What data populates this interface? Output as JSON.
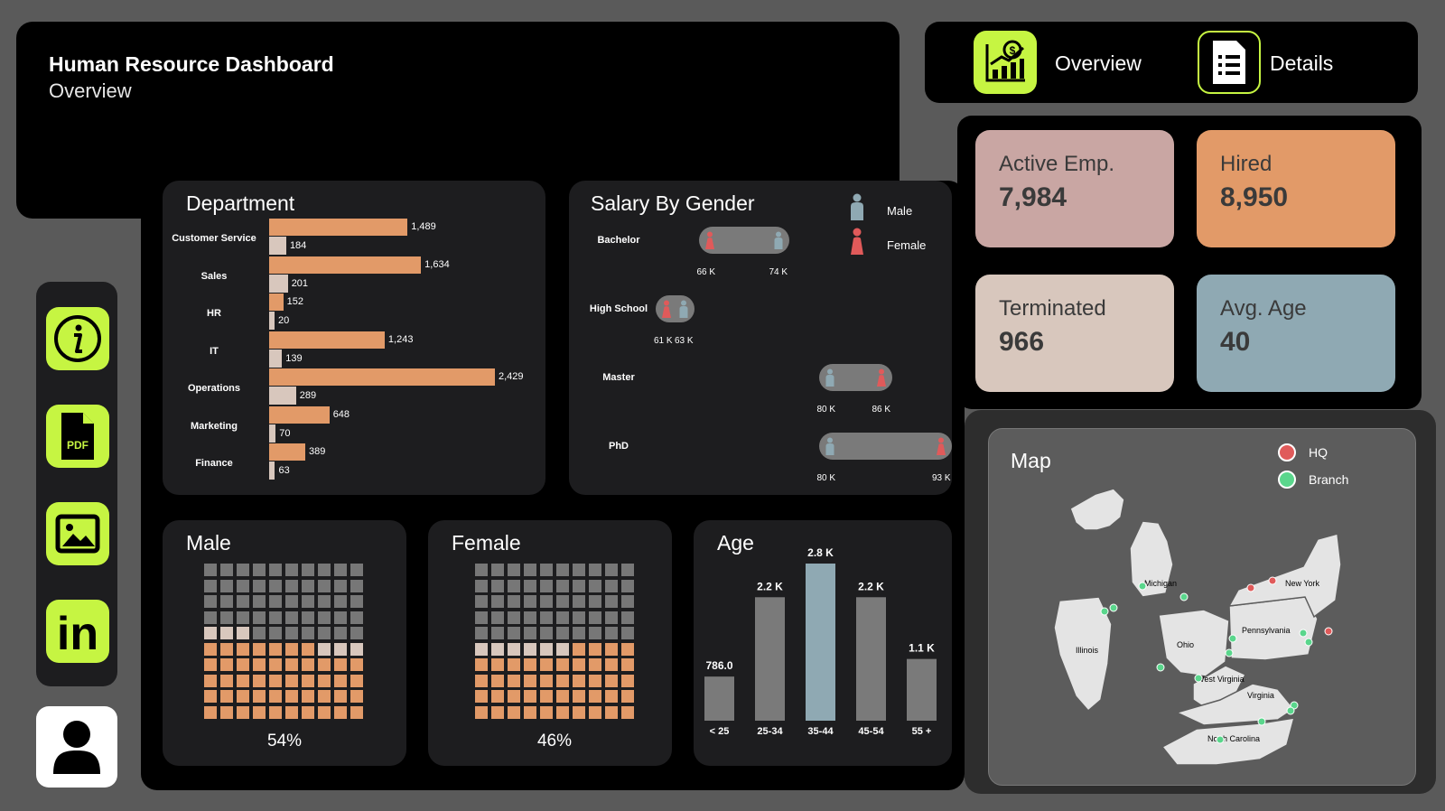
{
  "header": {
    "title": "Human Resource Dashboard",
    "subtitle": "Overview"
  },
  "nav": {
    "overview_label": "Overview",
    "details_label": "Details",
    "overview_icon": "chart-dollar-icon",
    "details_icon": "document-list-icon"
  },
  "sidebar": {
    "items": [
      {
        "icon": "info-icon"
      },
      {
        "icon": "pdf-icon",
        "label": "PDF"
      },
      {
        "icon": "image-icon"
      },
      {
        "icon": "linkedin-icon",
        "label": "in"
      }
    ],
    "user_icon": "user-icon"
  },
  "kpis": {
    "active": {
      "label": "Active Emp.",
      "value": "7,984",
      "color": "#c9a6a3"
    },
    "hired": {
      "label": "Hired",
      "value": "8,950",
      "color": "#e29a68"
    },
    "terminated": {
      "label": "Terminated",
      "value": "966",
      "color": "#d8c7bd"
    },
    "avg_age": {
      "label": "Avg. Age",
      "value": "40",
      "color": "#8fa9b3"
    }
  },
  "department": {
    "title": "Department",
    "rows": [
      {
        "name": "Customer Service",
        "hired": 1489,
        "hired_label": "1,489",
        "terminated": 184,
        "terminated_label": "184"
      },
      {
        "name": "Sales",
        "hired": 1634,
        "hired_label": "1,634",
        "terminated": 201,
        "terminated_label": "201"
      },
      {
        "name": "HR",
        "hired": 152,
        "hired_label": "152",
        "terminated": 20,
        "terminated_label": "20"
      },
      {
        "name": "IT",
        "hired": 1243,
        "hired_label": "1,243",
        "terminated": 139,
        "terminated_label": "139"
      },
      {
        "name": "Operations",
        "hired": 2429,
        "hired_label": "2,429",
        "terminated": 289,
        "terminated_label": "289"
      },
      {
        "name": "Marketing",
        "hired": 648,
        "hired_label": "648",
        "terminated": 70,
        "terminated_label": "70"
      },
      {
        "name": "Finance",
        "hired": 389,
        "hired_label": "389",
        "terminated": 63,
        "terminated_label": "63"
      }
    ],
    "colors": {
      "hired": "#e29a68",
      "terminated": "#d8c7bd"
    }
  },
  "salary": {
    "title": "Salary By Gender",
    "legend": {
      "male": "Male",
      "female": "Female"
    },
    "colors": {
      "male": "#8fa9b3",
      "female": "#e05a5a"
    },
    "rows": [
      {
        "name": "Bachelor",
        "low": 66,
        "high": 74,
        "low_label": "66 K",
        "high_label": "74 K",
        "low_gender": "female"
      },
      {
        "name": "High School",
        "low": 61,
        "high": 63,
        "low_label": "61 K",
        "high_label": "63 K",
        "low_gender": "female"
      },
      {
        "name": "Master",
        "low": 80,
        "high": 86,
        "low_label": "80 K",
        "high_label": "86 K",
        "low_gender": "male"
      },
      {
        "name": "PhD",
        "low": 80,
        "high": 93,
        "low_label": "80 K",
        "high_label": "93 K",
        "low_gender": "male"
      }
    ]
  },
  "male": {
    "title": "Male",
    "percent": "54%",
    "rows_gray": 4,
    "light": 3,
    "light2": 3,
    "color_gray": "#777777",
    "color_light": "#d8c7bd",
    "color_orange": "#e29a68"
  },
  "female": {
    "title": "Female",
    "percent": "46%",
    "rows_gray": 5,
    "light": 6,
    "color_gray": "#777777",
    "color_light": "#d8c7bd",
    "color_orange": "#e29a68"
  },
  "age": {
    "title": "Age",
    "chart_data": {
      "type": "bar",
      "categories": [
        "< 25",
        "25-34",
        "35-44",
        "45-54",
        "55 +"
      ],
      "values": [
        786,
        2200,
        2800,
        2200,
        1100
      ],
      "labels": [
        "786.0",
        "2.2 K",
        "2.8 K",
        "2.2 K",
        "1.1 K"
      ],
      "highlight_index": 2,
      "colors": {
        "default": "#7a7a7a",
        "highlight": "#8fa9b3"
      }
    }
  },
  "map": {
    "title": "Map",
    "legend": {
      "hq": "HQ",
      "branch": "Branch"
    },
    "colors": {
      "hq": "#e05a5a",
      "branch": "#5ad68c"
    },
    "states": [
      "Michigan",
      "New York",
      "Illinois",
      "Ohio",
      "Pennsylvania",
      "West Virginia",
      "Virginia",
      "North Carolina"
    ]
  }
}
